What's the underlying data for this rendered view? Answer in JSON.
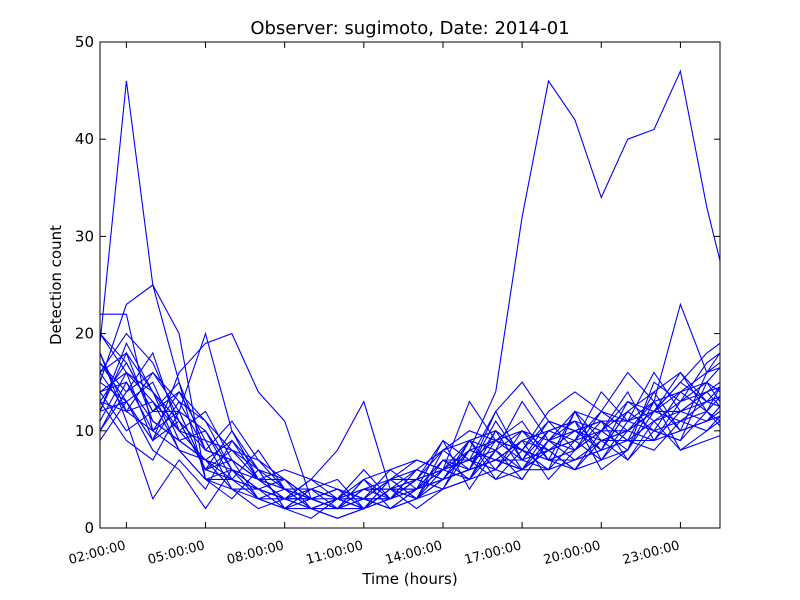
{
  "chart_data": {
    "type": "line",
    "title": "Observer: sugimoto, Date: 2014-01",
    "xlabel": "Time (hours)",
    "ylabel": "Detection count",
    "xlim": [
      1,
      24.5
    ],
    "ylim": [
      0,
      50
    ],
    "yticks": [
      0,
      10,
      20,
      30,
      40,
      50
    ],
    "xticks": [
      {
        "hour": 2,
        "label": "02:00:00"
      },
      {
        "hour": 5,
        "label": "05:00:00"
      },
      {
        "hour": 8,
        "label": "08:00:00"
      },
      {
        "hour": 11,
        "label": "11:00:00"
      },
      {
        "hour": 14,
        "label": "14:00:00"
      },
      {
        "hour": 17,
        "label": "17:00:00"
      },
      {
        "hour": 20,
        "label": "20:00:00"
      },
      {
        "hour": 23,
        "label": "23:00:00"
      }
    ],
    "grid": false,
    "legend": "none",
    "line_color": "#0000ff",
    "x": [
      1,
      2,
      3,
      4,
      5,
      6,
      7,
      8,
      9,
      10,
      11,
      12,
      13,
      14,
      15,
      16,
      17,
      18,
      19,
      20,
      21,
      22,
      23,
      24,
      25
    ],
    "series": [
      {
        "values": [
          19,
          46,
          25,
          15,
          8,
          7,
          5,
          4,
          3,
          2,
          3,
          2,
          4,
          5,
          8,
          14,
          32,
          46,
          42,
          34,
          40,
          41,
          47,
          33,
          22
        ]
      },
      {
        "values": [
          22,
          22,
          10,
          12,
          20,
          10,
          6,
          2,
          1,
          3,
          2,
          4,
          3,
          5,
          6,
          7,
          9,
          5,
          8,
          12,
          11,
          13,
          23,
          16,
          20
        ]
      },
      {
        "values": [
          15,
          23,
          25,
          20,
          5,
          6,
          4,
          3,
          2,
          1,
          2,
          3,
          5,
          9,
          7,
          12,
          15,
          11,
          10,
          8,
          13,
          12,
          15,
          18,
          20
        ]
      },
      {
        "values": [
          17,
          13,
          9,
          16,
          19,
          20,
          14,
          11,
          3,
          2,
          4,
          5,
          7,
          6,
          13,
          9,
          8,
          12,
          14,
          12,
          16,
          13,
          10,
          16,
          17
        ]
      },
      {
        "values": [
          20,
          16,
          14,
          11,
          6,
          7,
          5,
          6,
          5,
          8,
          13,
          4,
          5,
          8,
          6,
          12,
          7,
          10,
          9,
          14,
          11,
          16,
          12,
          14,
          16
        ]
      },
      {
        "values": [
          12,
          18,
          11,
          9,
          7,
          6,
          4,
          3,
          4,
          2,
          5,
          6,
          7,
          6,
          9,
          8,
          13,
          9,
          11,
          10,
          8,
          12,
          15,
          13,
          12
        ]
      },
      {
        "values": [
          14,
          15,
          10,
          8,
          5,
          3,
          6,
          5,
          3,
          4,
          3,
          5,
          6,
          8,
          10,
          9,
          11,
          7,
          6,
          9,
          10,
          12,
          14,
          16,
          18
        ]
      },
      {
        "values": [
          16,
          12,
          13,
          10,
          9,
          4,
          3,
          2,
          4,
          3,
          4,
          3,
          4,
          7,
          5,
          10,
          6,
          8,
          10,
          11,
          9,
          8,
          11,
          10,
          13
        ]
      },
      {
        "values": [
          10,
          14,
          16,
          12,
          6,
          5,
          8,
          4,
          2,
          3,
          2,
          4,
          6,
          5,
          9,
          6,
          5,
          9,
          7,
          8,
          12,
          10,
          9,
          12,
          15
        ]
      },
      {
        "values": [
          13,
          17,
          12,
          14,
          11,
          8,
          5,
          3,
          3,
          2,
          3,
          6,
          4,
          9,
          4,
          8,
          10,
          7,
          12,
          9,
          7,
          11,
          13,
          15,
          11
        ]
      },
      {
        "values": [
          9,
          13,
          15,
          9,
          10,
          6,
          4,
          5,
          3,
          4,
          3,
          3,
          5,
          4,
          8,
          9,
          7,
          11,
          8,
          10,
          14,
          9,
          12,
          11,
          14
        ]
      },
      {
        "values": [
          18,
          11,
          3,
          7,
          4,
          9,
          5,
          3,
          5,
          3,
          6,
          3,
          4,
          6,
          7,
          5,
          8,
          6,
          9,
          7,
          10,
          13,
          8,
          9,
          10
        ]
      },
      {
        "values": [
          11,
          16,
          9,
          13,
          8,
          11,
          7,
          4,
          3,
          2,
          4,
          4,
          3,
          5,
          6,
          7,
          6,
          9,
          12,
          11,
          9,
          14,
          16,
          12,
          9
        ]
      },
      {
        "values": [
          14,
          10,
          12,
          15,
          5,
          5,
          3,
          2,
          2,
          3,
          3,
          2,
          3,
          6,
          5,
          6,
          10,
          8,
          6,
          7,
          11,
          12,
          11,
          13,
          16
        ]
      },
      {
        "values": [
          12,
          19,
          14,
          8,
          7,
          4,
          4,
          3,
          4,
          5,
          2,
          5,
          5,
          4,
          9,
          10,
          8,
          7,
          8,
          10,
          12,
          10,
          14,
          15,
          13
        ]
      },
      {
        "values": [
          15,
          13,
          8,
          6,
          2,
          6,
          3,
          4,
          2,
          1,
          2,
          4,
          4,
          7,
          7,
          6,
          9,
          10,
          11,
          6,
          8,
          15,
          13,
          17,
          19
        ]
      },
      {
        "values": [
          16,
          20,
          17,
          11,
          6,
          10,
          5,
          3,
          3,
          2,
          5,
          3,
          6,
          5,
          8,
          7,
          6,
          8,
          9,
          12,
          10,
          9,
          10,
          11,
          12
        ]
      },
      {
        "values": [
          13,
          12,
          10,
          14,
          9,
          8,
          6,
          2,
          3,
          4,
          3,
          2,
          3,
          7,
          6,
          11,
          7,
          6,
          7,
          8,
          9,
          11,
          12,
          14,
          15
        ]
      },
      {
        "values": [
          17,
          14,
          18,
          10,
          12,
          7,
          5,
          5,
          2,
          3,
          4,
          4,
          2,
          4,
          5,
          9,
          8,
          11,
          10,
          9,
          10,
          12,
          16,
          13,
          14
        ]
      },
      {
        "values": [
          20,
          17,
          12,
          12,
          10,
          5,
          4,
          3,
          3,
          2,
          3,
          3,
          5,
          6,
          7,
          8,
          5,
          9,
          8,
          11,
          7,
          10,
          11,
          12,
          17
        ]
      },
      {
        "values": [
          10,
          15,
          11,
          9,
          7,
          9,
          6,
          4,
          4,
          3,
          2,
          4,
          4,
          5,
          6,
          7,
          9,
          8,
          6,
          10,
          13,
          11,
          8,
          10,
          12
        ]
      },
      {
        "values": [
          14,
          16,
          13,
          8,
          5,
          4,
          2,
          3,
          5,
          4,
          3,
          5,
          3,
          8,
          9,
          5,
          6,
          10,
          11,
          8,
          12,
          14,
          10,
          11,
          13
        ]
      },
      {
        "values": [
          18,
          12,
          16,
          13,
          11,
          6,
          5,
          4,
          3,
          3,
          5,
          2,
          4,
          5,
          6,
          10,
          8,
          7,
          7,
          9,
          9,
          9,
          13,
          14,
          11
        ]
      },
      {
        "values": [
          12,
          13,
          9,
          11,
          8,
          7,
          3,
          3,
          2,
          2,
          2,
          3,
          5,
          6,
          8,
          7,
          7,
          8,
          9,
          10,
          10,
          12,
          12,
          13,
          14
        ]
      },
      {
        "values": [
          16,
          18,
          14,
          10,
          7,
          5,
          4,
          2,
          4,
          3,
          4,
          4,
          4,
          7,
          7,
          9,
          10,
          9,
          10,
          11,
          11,
          10,
          9,
          15,
          18
        ]
      },
      {
        "values": [
          13,
          9,
          7,
          12,
          6,
          8,
          7,
          5,
          3,
          4,
          2,
          5,
          3,
          4,
          5,
          8,
          6,
          6,
          12,
          7,
          8,
          13,
          14,
          12,
          10
        ]
      }
    ]
  }
}
